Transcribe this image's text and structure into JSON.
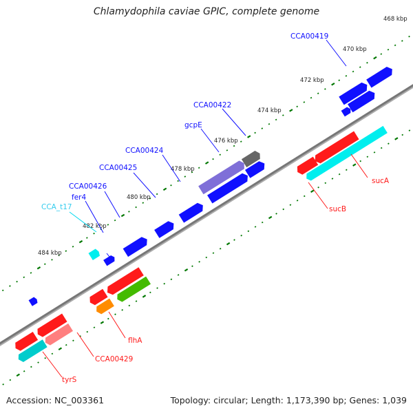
{
  "title": "Chlamydophila caviae GPIC, complete genome",
  "accession": "Accession: NC_003361",
  "topology": "Topology: circular; Length: 1,173,390 bp; Genes: 1,039",
  "colors": {
    "forward_gene": "#1010ff",
    "reverse_gene": "#ff1a1a",
    "trna": "#00e5ee",
    "rrna_or_ncrna": "#00eeee",
    "misc_gray": "#666666",
    "lavender": "#7f6fd8",
    "orange": "#ff8c00",
    "green": "#33bb00",
    "pink": "#ff7f7f",
    "backbone": "#808080",
    "tick": "#007700"
  },
  "kbp_labels": [
    "468 kbp",
    "470 kbp",
    "472 kbp",
    "474 kbp",
    "476 kbp",
    "478 kbp",
    "480 kbp",
    "482 kbp",
    "484 kbp"
  ],
  "gene_labels": {
    "forward": [
      "CCA00419",
      "gcpE",
      "CCA00422",
      "CCA00424",
      "CCA00425",
      "CCA00426",
      "fer4"
    ],
    "reverse": [
      "sucA",
      "sucB",
      "flhA",
      "CCA00429",
      "tyrS"
    ],
    "trna": [
      "CCA_t17"
    ]
  }
}
